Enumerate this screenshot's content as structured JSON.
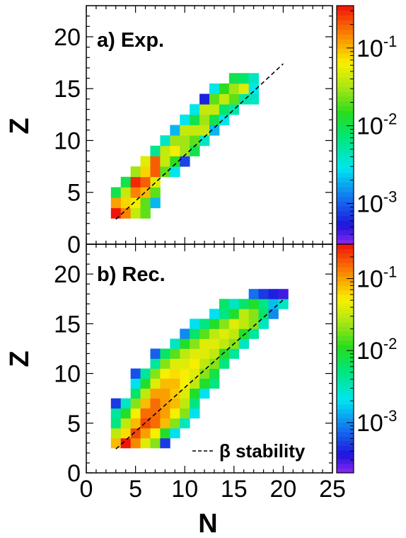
{
  "chart_data": [
    {
      "type": "heatmap",
      "panel_label": "a) Exp.",
      "xlabel": "N",
      "ylabel": "Z",
      "xlim": [
        0,
        25
      ],
      "ylim": [
        0,
        23
      ],
      "x_ticks": [
        "0",
        "5",
        "10",
        "15",
        "20",
        "25"
      ],
      "y_ticks": [
        "0",
        "5",
        "10",
        "15",
        "20"
      ],
      "colorbar": {
        "scale": "log",
        "range": [
          0.0003,
          0.35
        ],
        "tick_values": [
          0.001,
          0.01,
          0.1
        ],
        "tick_labels": [
          "10-3",
          "10-2",
          "10-1"
        ]
      },
      "stability_line": {
        "x": [
          3,
          20
        ],
        "y": [
          2.4,
          17.4
        ]
      },
      "cells_note": "[N, Z, value]",
      "cells": [
        [
          3,
          3,
          0.35
        ],
        [
          4,
          3,
          0.15
        ],
        [
          5,
          3,
          0.04
        ],
        [
          6,
          3,
          0.02
        ],
        [
          3,
          4,
          0.12
        ],
        [
          4,
          4,
          0.08
        ],
        [
          5,
          4,
          0.06
        ],
        [
          6,
          4,
          0.02
        ],
        [
          7,
          4,
          0.002
        ],
        [
          3,
          5,
          0.01
        ],
        [
          4,
          5,
          0.04
        ],
        [
          5,
          5,
          0.15
        ],
        [
          6,
          5,
          0.1
        ],
        [
          7,
          5,
          0.02
        ],
        [
          4,
          6,
          0.01
        ],
        [
          5,
          6,
          0.3
        ],
        [
          6,
          6,
          0.2
        ],
        [
          7,
          6,
          0.05
        ],
        [
          5,
          7,
          0.03
        ],
        [
          6,
          7,
          0.08
        ],
        [
          7,
          7,
          0.2
        ],
        [
          8,
          7,
          0.02
        ],
        [
          9,
          7,
          0.003
        ],
        [
          6,
          8,
          0.05
        ],
        [
          7,
          8,
          0.2
        ],
        [
          8,
          8,
          0.04
        ],
        [
          9,
          8,
          0.015
        ],
        [
          10,
          8,
          0.0008
        ],
        [
          7,
          9,
          0.006
        ],
        [
          8,
          9,
          0.04
        ],
        [
          9,
          9,
          0.06
        ],
        [
          10,
          9,
          0.03
        ],
        [
          11,
          9,
          0.01
        ],
        [
          8,
          10,
          0.004
        ],
        [
          9,
          10,
          0.03
        ],
        [
          10,
          10,
          0.03
        ],
        [
          11,
          10,
          0.02
        ],
        [
          12,
          10,
          0.004
        ],
        [
          9,
          11,
          0.002
        ],
        [
          10,
          11,
          0.04
        ],
        [
          11,
          11,
          0.04
        ],
        [
          12,
          11,
          0.04
        ],
        [
          13,
          11,
          0.002
        ],
        [
          10,
          12,
          0.003
        ],
        [
          11,
          12,
          0.01
        ],
        [
          12,
          12,
          0.03
        ],
        [
          13,
          12,
          0.01
        ],
        [
          14,
          12,
          0.003
        ],
        [
          11,
          13,
          0.003
        ],
        [
          12,
          13,
          0.04
        ],
        [
          13,
          13,
          0.04
        ],
        [
          14,
          13,
          0.008
        ],
        [
          15,
          13,
          0.005
        ],
        [
          12,
          14,
          0.0006
        ],
        [
          13,
          14,
          0.02
        ],
        [
          14,
          14,
          0.04
        ],
        [
          15,
          14,
          0.02
        ],
        [
          16,
          14,
          0.005
        ],
        [
          17,
          14,
          0.004
        ],
        [
          13,
          15,
          0.003
        ],
        [
          14,
          15,
          0.015
        ],
        [
          15,
          15,
          0.03
        ],
        [
          16,
          15,
          0.05
        ],
        [
          17,
          15,
          0.003
        ],
        [
          15,
          16,
          0.01
        ],
        [
          16,
          16,
          0.008
        ],
        [
          17,
          16,
          0.004
        ]
      ]
    },
    {
      "type": "heatmap",
      "panel_label": "b) Rec.",
      "xlabel": "N",
      "ylabel": "Z",
      "xlim": [
        0,
        25
      ],
      "ylim": [
        0,
        23
      ],
      "x_ticks": [
        "0",
        "5",
        "10",
        "15",
        "20",
        "25"
      ],
      "y_ticks": [
        "0",
        "5",
        "10",
        "15",
        "20"
      ],
      "colorbar": {
        "scale": "log",
        "range": [
          0.0002,
          0.3
        ],
        "tick_values": [
          0.001,
          0.01,
          0.1
        ],
        "tick_labels": [
          "10-3",
          "10-2",
          "10-1"
        ]
      },
      "legend": {
        "label": "β stability",
        "line_style": "dashed"
      },
      "stability_line": {
        "x": [
          3,
          20
        ],
        "y": [
          2.4,
          17.4
        ]
      },
      "cells_note": "[N, Z, value]",
      "cells": [
        [
          3,
          3,
          0.08
        ],
        [
          4,
          3,
          0.3
        ],
        [
          5,
          3,
          0.12
        ],
        [
          6,
          3,
          0.04
        ],
        [
          7,
          3,
          0.02
        ],
        [
          8,
          3,
          0.0005
        ],
        [
          3,
          4,
          0.03
        ],
        [
          4,
          4,
          0.06
        ],
        [
          5,
          4,
          0.2
        ],
        [
          6,
          4,
          0.1
        ],
        [
          7,
          4,
          0.05
        ],
        [
          8,
          4,
          0.01
        ],
        [
          9,
          4,
          0.002
        ],
        [
          3,
          5,
          0.005
        ],
        [
          4,
          5,
          0.03
        ],
        [
          5,
          5,
          0.08
        ],
        [
          6,
          5,
          0.2
        ],
        [
          7,
          5,
          0.15
        ],
        [
          8,
          5,
          0.08
        ],
        [
          9,
          5,
          0.02
        ],
        [
          10,
          5,
          0.003
        ],
        [
          3,
          6,
          0.004
        ],
        [
          4,
          6,
          0.01
        ],
        [
          5,
          6,
          0.05
        ],
        [
          6,
          6,
          0.15
        ],
        [
          7,
          6,
          0.15
        ],
        [
          8,
          6,
          0.1
        ],
        [
          9,
          6,
          0.05
        ],
        [
          10,
          6,
          0.02
        ],
        [
          11,
          6,
          0.002
        ],
        [
          3,
          7,
          0.0005
        ],
        [
          4,
          7,
          0.003
        ],
        [
          5,
          7,
          0.02
        ],
        [
          6,
          7,
          0.08
        ],
        [
          7,
          7,
          0.15
        ],
        [
          8,
          7,
          0.1
        ],
        [
          9,
          7,
          0.08
        ],
        [
          10,
          7,
          0.03
        ],
        [
          11,
          7,
          0.005
        ],
        [
          5,
          8,
          0.006
        ],
        [
          6,
          8,
          0.03
        ],
        [
          7,
          8,
          0.1
        ],
        [
          8,
          8,
          0.1
        ],
        [
          9,
          8,
          0.07
        ],
        [
          10,
          8,
          0.04
        ],
        [
          11,
          8,
          0.01
        ],
        [
          12,
          8,
          0.002
        ],
        [
          5,
          9,
          0.002
        ],
        [
          6,
          9,
          0.01
        ],
        [
          7,
          9,
          0.04
        ],
        [
          8,
          9,
          0.08
        ],
        [
          9,
          9,
          0.08
        ],
        [
          10,
          9,
          0.05
        ],
        [
          11,
          9,
          0.03
        ],
        [
          12,
          9,
          0.01
        ],
        [
          13,
          9,
          0.005
        ],
        [
          5,
          10,
          0.0006
        ],
        [
          6,
          10,
          0.004
        ],
        [
          7,
          10,
          0.02
        ],
        [
          8,
          10,
          0.05
        ],
        [
          9,
          10,
          0.06
        ],
        [
          10,
          10,
          0.05
        ],
        [
          11,
          10,
          0.04
        ],
        [
          12,
          10,
          0.02
        ],
        [
          13,
          10,
          0.008
        ],
        [
          7,
          11,
          0.004
        ],
        [
          8,
          11,
          0.02
        ],
        [
          9,
          11,
          0.04
        ],
        [
          10,
          11,
          0.04
        ],
        [
          11,
          11,
          0.05
        ],
        [
          12,
          11,
          0.03
        ],
        [
          13,
          11,
          0.02
        ],
        [
          14,
          11,
          0.005
        ],
        [
          7,
          12,
          0.0007
        ],
        [
          8,
          12,
          0.006
        ],
        [
          9,
          12,
          0.015
        ],
        [
          10,
          12,
          0.03
        ],
        [
          11,
          12,
          0.04
        ],
        [
          12,
          12,
          0.04
        ],
        [
          13,
          12,
          0.03
        ],
        [
          14,
          12,
          0.01
        ],
        [
          15,
          12,
          0.004
        ],
        [
          9,
          13,
          0.003
        ],
        [
          10,
          13,
          0.01
        ],
        [
          11,
          13,
          0.02
        ],
        [
          12,
          13,
          0.04
        ],
        [
          13,
          13,
          0.04
        ],
        [
          14,
          13,
          0.03
        ],
        [
          15,
          13,
          0.02
        ],
        [
          16,
          13,
          0.003
        ],
        [
          10,
          14,
          0.001
        ],
        [
          11,
          14,
          0.006
        ],
        [
          12,
          14,
          0.015
        ],
        [
          13,
          14,
          0.03
        ],
        [
          14,
          14,
          0.04
        ],
        [
          15,
          14,
          0.03
        ],
        [
          16,
          14,
          0.01
        ],
        [
          17,
          14,
          0.004
        ],
        [
          11,
          15,
          0.002
        ],
        [
          12,
          15,
          0.005
        ],
        [
          13,
          15,
          0.01
        ],
        [
          14,
          15,
          0.02
        ],
        [
          15,
          15,
          0.04
        ],
        [
          16,
          15,
          0.03
        ],
        [
          17,
          15,
          0.02
        ],
        [
          18,
          15,
          0.003
        ],
        [
          13,
          16,
          0.002
        ],
        [
          14,
          16,
          0.005
        ],
        [
          15,
          16,
          0.01
        ],
        [
          16,
          16,
          0.03
        ],
        [
          17,
          16,
          0.02
        ],
        [
          18,
          16,
          0.006
        ],
        [
          19,
          16,
          0.001
        ],
        [
          14,
          17,
          0.006
        ],
        [
          15,
          17,
          0.003
        ],
        [
          16,
          17,
          0.006
        ],
        [
          17,
          17,
          0.01
        ],
        [
          18,
          17,
          0.005
        ],
        [
          19,
          17,
          0.0015
        ],
        [
          20,
          17,
          0.003
        ],
        [
          17,
          18,
          0.0008
        ],
        [
          18,
          18,
          0.0005
        ],
        [
          19,
          18,
          0.0004
        ],
        [
          20,
          18,
          0.0003
        ]
      ]
    }
  ]
}
